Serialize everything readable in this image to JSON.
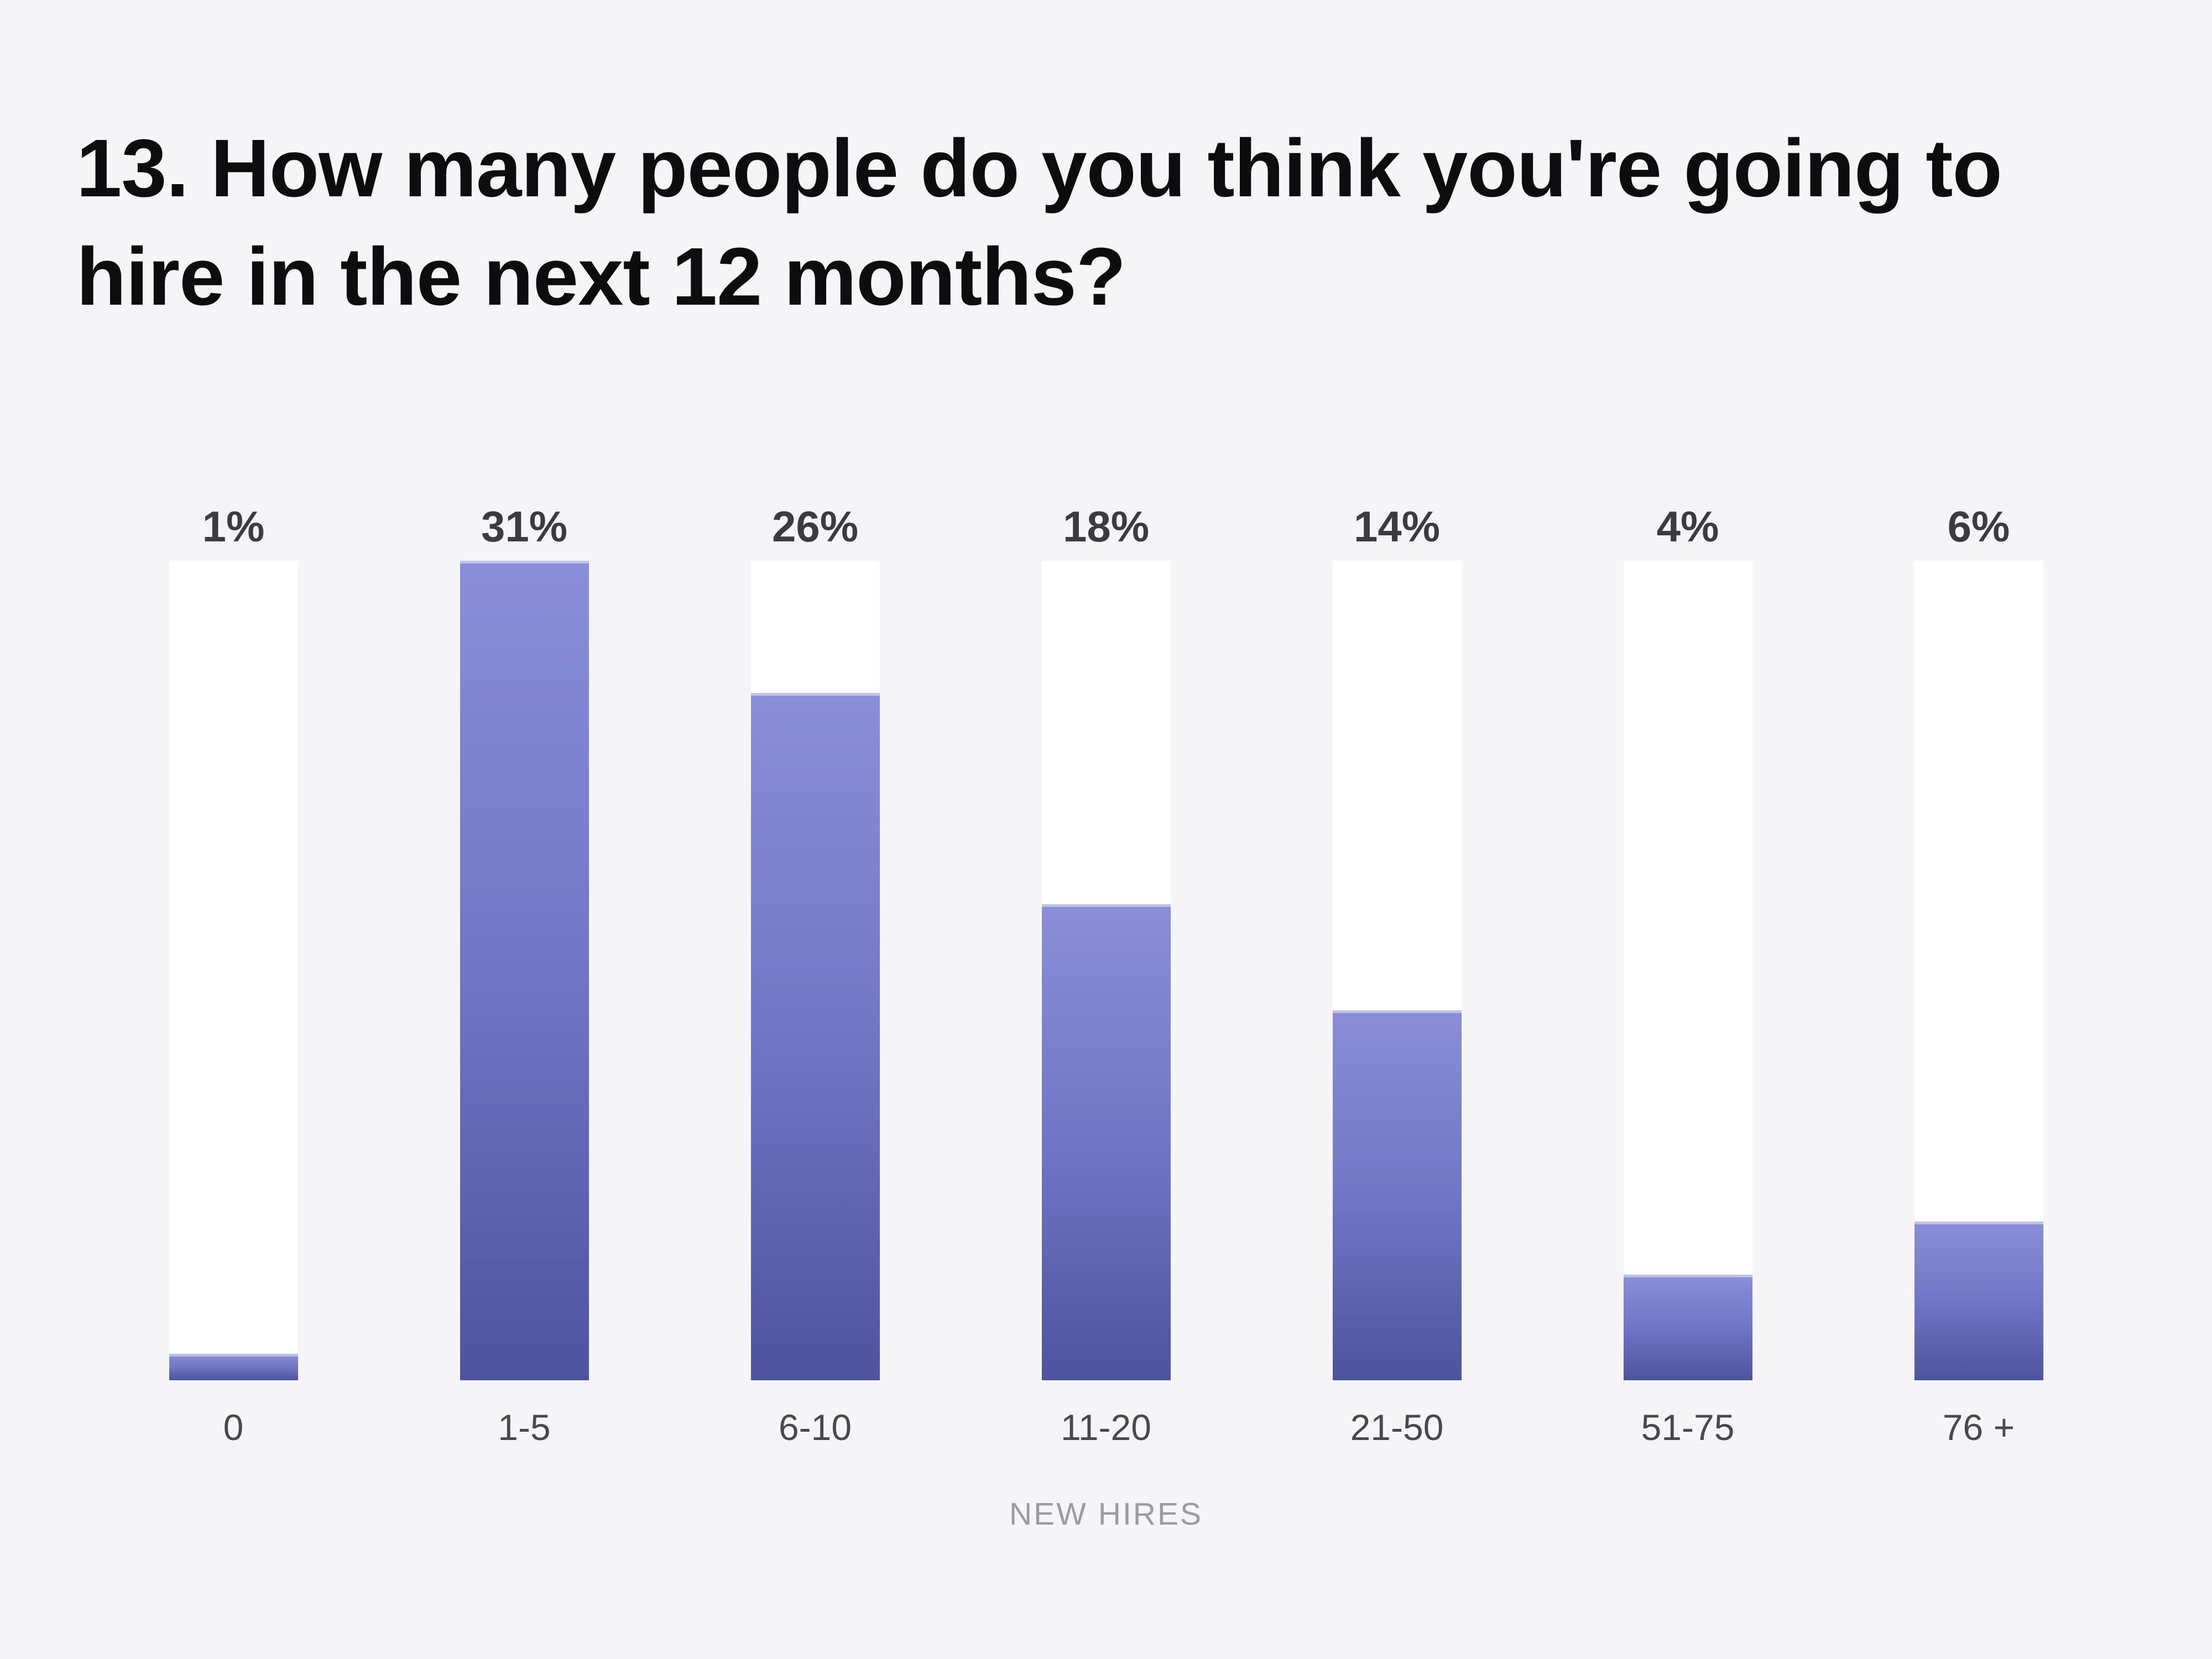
{
  "page": {
    "background_color": "#f5f5f8"
  },
  "title": "13. How many people do you think you're going to hire in the next 12 months?",
  "chart_data": {
    "type": "bar",
    "title": "13. How many people do you think you're going to hire in the next 12 months?",
    "categories": [
      "0",
      "1-5",
      "6-10",
      "11-20",
      "21-50",
      "51-75",
      "76 +"
    ],
    "values": [
      1,
      31,
      26,
      18,
      14,
      4,
      6
    ],
    "value_labels": [
      "1%",
      "31%",
      "26%",
      "18%",
      "14%",
      "4%",
      "6%"
    ],
    "xlabel": "NEW HIRES",
    "ylabel": "",
    "ylim": [
      0,
      31
    ],
    "grid": false,
    "legend": "none",
    "orientation": "vertical",
    "bar_scaling": "bars scaled so max value (31%) fills full track height",
    "colors": {
      "bar_gradient_top": "#8a8ed8",
      "bar_gradient_mid": "#7076c6",
      "bar_gradient_bottom": "#4e53a0",
      "track_background": "#ffffff",
      "value_label": "#3b3b41",
      "category_label": "#48484e",
      "axis_label": "#9b9ba1",
      "title": "#0d0d10",
      "page_background": "#f5f5f8"
    }
  }
}
